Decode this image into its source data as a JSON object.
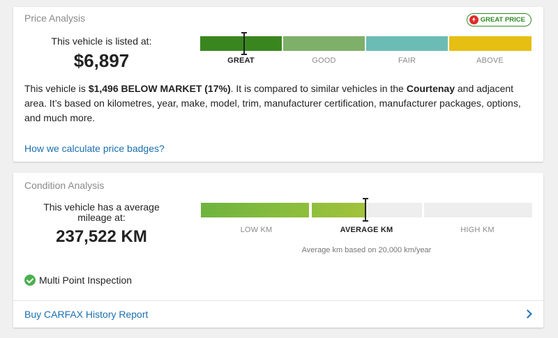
{
  "price_analysis": {
    "title": "Price Analysis",
    "badge": "GREAT PRICE",
    "listed_label": "This vehicle is listed at:",
    "price": "$6,897",
    "scale": [
      {
        "label": "GREAT",
        "color": "#3a861e",
        "active": true
      },
      {
        "label": "GOOD",
        "color": "#7fb06a",
        "active": false
      },
      {
        "label": "FAIR",
        "color": "#6bbcb5",
        "active": false
      },
      {
        "label": "ABOVE",
        "color": "#e5bf12",
        "active": false
      }
    ],
    "marker_position": 0.13,
    "description": {
      "p1": "This vehicle is ",
      "amount": "$1,496 BELOW MARKET (17%)",
      "p2": ". It is compared to similar vehicles in the ",
      "location": "Courtenay",
      "p3": " and adjacent area. It’s based on kilometres, year, make, model, trim, manufacturer certification, manufacturer packages, options, and much more."
    },
    "calc_link": "How we calculate price badges?"
  },
  "condition_analysis": {
    "title": "Condition Analysis",
    "mileage_label": "This vehicle has a average mileage at:",
    "mileage": "237,522 KM",
    "scale": [
      {
        "label": "LOW KM",
        "active": false
      },
      {
        "label": "AVERAGE KM",
        "active": true
      },
      {
        "label": "HIGH KM",
        "active": false
      }
    ],
    "fill_level": 0.5,
    "km_note": "Average km based on 20,000 km/year",
    "inspection": "Multi Point Inspection",
    "carfax_link": "Buy CARFAX History Report"
  }
}
